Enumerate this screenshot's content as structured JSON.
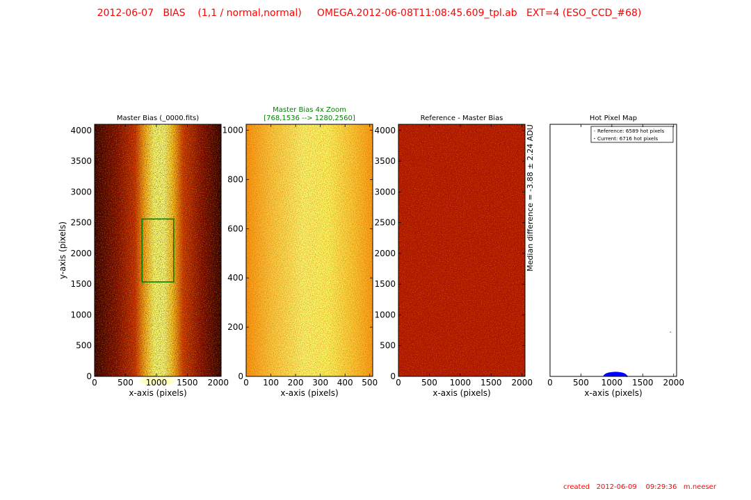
{
  "header": {
    "title": "2012-06-07   BIAS    (1,1 / normal,normal)     OMEGA.2012-06-08T11:08:45.609_tpl.ab   EXT=4 (ESO_CCD_#68)",
    "color": "#ff0000"
  },
  "footer": {
    "text": "created   2012-06-09    09:29:36   m.neeser",
    "color": "#ff0000"
  },
  "chart_data": [
    {
      "type": "heatmap",
      "title": "Master Bias (_0000.fits)",
      "title_color": "#000000",
      "xlabel": "x-axis (pixels)",
      "ylabel": "y-axis (pixels)",
      "xlim": [
        0,
        2048
      ],
      "ylim": [
        0,
        4100
      ],
      "xticks": [
        0,
        500,
        1000,
        1500,
        2000
      ],
      "yticks": [
        0,
        500,
        1000,
        1500,
        2000,
        2500,
        3000,
        3500,
        4000
      ],
      "colormap": "hot",
      "zoom_box": {
        "x": [
          768,
          1280
        ],
        "y": [
          1536,
          2560
        ],
        "color": "#008000"
      }
    },
    {
      "type": "heatmap",
      "title": "Master Bias 4x Zoom",
      "subtitle": "[768,1536 --> 1280,2560]",
      "title_color": "#008000",
      "xlabel": "x-axis (pixels)",
      "ylabel": "",
      "xlim": [
        0,
        512
      ],
      "ylim": [
        0,
        1024
      ],
      "xticks": [
        0,
        100,
        200,
        300,
        400,
        500
      ],
      "yticks": [
        0,
        200,
        400,
        600,
        800,
        1000
      ],
      "colormap": "hot"
    },
    {
      "type": "heatmap",
      "title": "Reference - Master Bias",
      "title_color": "#000000",
      "xlabel": "x-axis (pixels)",
      "ylabel": "",
      "right_label": "Median difference = -3.88  ± 2.24 ADU",
      "xlim": [
        0,
        2048
      ],
      "ylim": [
        0,
        4100
      ],
      "xticks": [
        0,
        500,
        1000,
        1500,
        2000
      ],
      "yticks": [
        0,
        500,
        1000,
        1500,
        2000,
        2500,
        3000,
        3500,
        4000
      ],
      "colormap": "hot"
    },
    {
      "type": "scatter",
      "title": "Hot Pixel Map",
      "title_color": "#000000",
      "xlabel": "x-axis (pixels)",
      "ylabel": "",
      "xlim": [
        0,
        2048
      ],
      "ylim": [
        0,
        4100
      ],
      "xticks": [
        0,
        500,
        1000,
        1500,
        2000
      ],
      "legend_position": "top-right",
      "series": [
        {
          "name": "Reference: 6589 hot pixels",
          "color": "#808080",
          "points": [
            [
              1950,
              720
            ]
          ]
        },
        {
          "name": "Current:   6716 hot pixels",
          "color": "#0000ff",
          "points": [
            [
              880,
              10
            ],
            [
              900,
              20
            ],
            [
              920,
              30
            ],
            [
              940,
              35
            ],
            [
              960,
              40
            ],
            [
              980,
              45
            ],
            [
              1000,
              48
            ],
            [
              1020,
              50
            ],
            [
              1040,
              52
            ],
            [
              1060,
              50
            ],
            [
              1080,
              48
            ],
            [
              1100,
              45
            ],
            [
              1120,
              40
            ],
            [
              1140,
              35
            ],
            [
              1160,
              30
            ],
            [
              1180,
              25
            ],
            [
              1200,
              18
            ],
            [
              1220,
              10
            ],
            [
              1240,
              5
            ],
            [
              960,
              15
            ],
            [
              1000,
              20
            ],
            [
              1050,
              25
            ],
            [
              1100,
              20
            ],
            [
              1150,
              15
            ]
          ]
        }
      ]
    }
  ]
}
